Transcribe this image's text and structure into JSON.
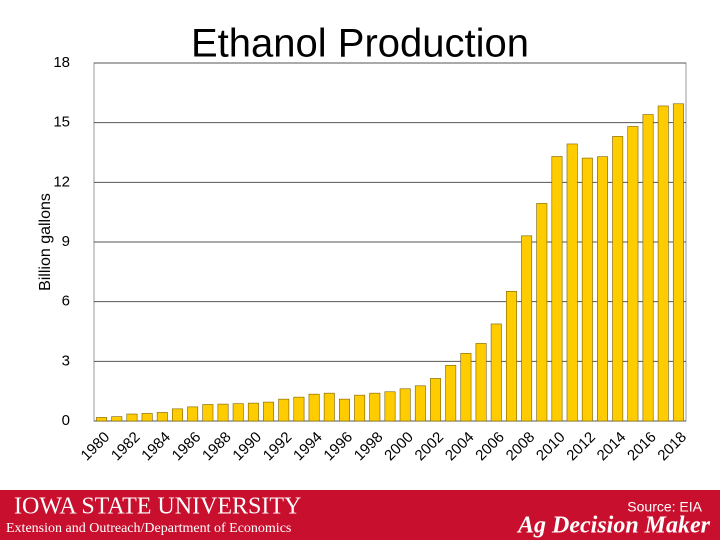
{
  "chart_data": {
    "type": "bar",
    "title": "Ethanol Production",
    "y_label": "Billion gallons",
    "categories": [
      "1980",
      null,
      "1982",
      null,
      "1984",
      null,
      "1986",
      null,
      "1988",
      null,
      "1990",
      null,
      "1992",
      null,
      "1994",
      null,
      "1996",
      null,
      "1998",
      null,
      "2000",
      null,
      "2002",
      null,
      "2004",
      null,
      "2006",
      null,
      "2008",
      null,
      "2010",
      null,
      "2012",
      null,
      "2014",
      null,
      "2016",
      null,
      "2018"
    ],
    "values": [
      0.18,
      0.22,
      0.35,
      0.38,
      0.43,
      0.61,
      0.71,
      0.83,
      0.85,
      0.87,
      0.9,
      0.95,
      1.1,
      1.2,
      1.35,
      1.4,
      1.1,
      1.3,
      1.4,
      1.47,
      1.62,
      1.77,
      2.14,
      2.8,
      3.4,
      3.9,
      4.88,
      6.52,
      9.31,
      10.94,
      13.3,
      13.93,
      13.22,
      13.29,
      14.31,
      14.81,
      15.41,
      15.84,
      15.95
    ],
    "color": "#ffcc00",
    "ylim": [
      0,
      18
    ],
    "yticks": [
      0,
      3,
      6,
      9,
      12,
      15,
      18
    ],
    "grid": true
  },
  "footer": {
    "university": "Iowa State University",
    "department": "Extension and Outreach/Department of Economics",
    "source": "Source: EIA",
    "brand": "Ag Decision Maker"
  }
}
